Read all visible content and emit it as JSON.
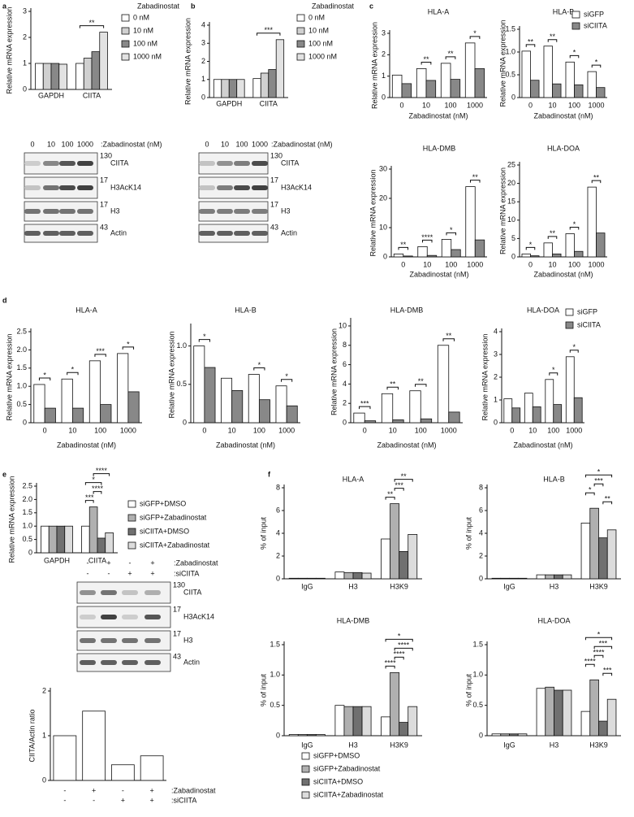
{
  "panel_labels": [
    "a",
    "b",
    "c",
    "d",
    "e",
    "f"
  ],
  "chart_data": [
    {
      "type": "bar",
      "ylabel": "Relative mRNA expression",
      "legend_title": "Zabadinostat",
      "legend": "right",
      "categories": [
        "GAPDH",
        "CIITA"
      ],
      "series": [
        {
          "name": "0 nM",
          "color": "#ffffff",
          "values": [
            1,
            1
          ]
        },
        {
          "name": "10 nM",
          "color": "#d0d0d0",
          "values": [
            1,
            1.2
          ]
        },
        {
          "name": "100 nM",
          "color": "#888888",
          "values": [
            1,
            1.45
          ]
        },
        {
          "name": "1000 nM",
          "color": "#e2e2e2",
          "values": [
            0.97,
            2.2
          ]
        }
      ],
      "ylim": [
        0,
        3
      ],
      "yticks": [
        0,
        1,
        2,
        3
      ],
      "brackets": [
        {
          "category": 1,
          "series": [
            0,
            3
          ],
          "text": "**"
        }
      ]
    },
    {
      "type": "bar",
      "ylabel": "Relative mRNA expression",
      "legend_title": "Zabadinostat",
      "legend": "right",
      "categories": [
        "GAPDH",
        "CIITA"
      ],
      "series": [
        {
          "name": "0 nM",
          "color": "#ffffff",
          "values": [
            1,
            1.05
          ]
        },
        {
          "name": "10 nM",
          "color": "#d0d0d0",
          "values": [
            1,
            1.35
          ]
        },
        {
          "name": "100 nM",
          "color": "#888888",
          "values": [
            1,
            1.55
          ]
        },
        {
          "name": "1000 nM",
          "color": "#e2e2e2",
          "values": [
            1,
            3.2
          ]
        }
      ],
      "ylim": [
        0,
        4
      ],
      "yticks": [
        0,
        1,
        2,
        3,
        4
      ],
      "brackets": [
        {
          "category": 1,
          "series": [
            0,
            3
          ],
          "text": "***"
        }
      ]
    },
    {
      "type": "bar",
      "title": "HLA-A",
      "ylabel": "Relative mRNA expression",
      "xlabel": "Zabadinostat (nM)",
      "categories": [
        "0",
        "10",
        "100",
        "1000"
      ],
      "series": [
        {
          "color": "#ffffff",
          "values": [
            1.05,
            1.35,
            1.6,
            2.55
          ]
        },
        {
          "color": "#888888",
          "values": [
            0.65,
            0.8,
            0.85,
            1.35
          ]
        }
      ],
      "ylim": [
        0,
        3
      ],
      "yticks": [
        0,
        1,
        2,
        3
      ],
      "significance": [
        null,
        "**",
        "**",
        "*"
      ]
    },
    {
      "type": "bar",
      "title": "HLA-B",
      "ylabel": "Relative mRNA expression",
      "xlabel": "Zabadinostat (nM)",
      "legend": "upper right",
      "categories": [
        "0",
        "10",
        "100",
        "1000"
      ],
      "series": [
        {
          "name": "siGFP",
          "color": "#ffffff",
          "values": [
            1.02,
            1.13,
            0.78,
            0.57
          ]
        },
        {
          "name": "siCIITA",
          "color": "#888888",
          "values": [
            0.38,
            0.3,
            0.28,
            0.22
          ]
        }
      ],
      "ylim": [
        0,
        1.5
      ],
      "yticks": [
        0,
        0.5,
        {
          "value": 1,
          "label": "1.0"
        },
        1.5
      ],
      "significance": [
        "**",
        "**",
        "*",
        "*"
      ]
    },
    {
      "type": "bar",
      "title": "HLA-DMB",
      "ylabel": "Relative mRNA expression",
      "xlabel": "Zabadinostat (nM)",
      "categories": [
        "0",
        "10",
        "100",
        "1000"
      ],
      "series": [
        {
          "color": "#ffffff",
          "values": [
            1,
            3.5,
            6,
            24
          ]
        },
        {
          "color": "#888888",
          "values": [
            0.3,
            0.5,
            2.5,
            5.8
          ]
        }
      ],
      "ylim": [
        0,
        30
      ],
      "yticks": [
        0,
        10,
        20,
        30
      ],
      "significance": [
        "**",
        "****",
        "*",
        "**"
      ]
    },
    {
      "type": "bar",
      "title": "HLA-DOA",
      "ylabel": "Relative mRNA expression",
      "xlabel": "Zabadinostat (nM)",
      "categories": [
        "0",
        "10",
        "100",
        "1000"
      ],
      "series": [
        {
          "color": "#ffffff",
          "values": [
            0.8,
            3.8,
            6.3,
            19
          ]
        },
        {
          "color": "#888888",
          "values": [
            0.3,
            0.8,
            1.5,
            6.5
          ]
        }
      ],
      "ylim": [
        0,
        25
      ],
      "yticks": [
        0,
        5,
        10,
        15,
        20,
        25
      ],
      "significance": [
        "*",
        "**",
        "*",
        "**"
      ]
    },
    {
      "type": "bar",
      "title": "HLA-A",
      "ylabel": "Relative mRNA expression",
      "xlabel": "Zabadinostat (nM)",
      "categories": [
        "0",
        "10",
        "100",
        "1000"
      ],
      "series": [
        {
          "color": "#ffffff",
          "values": [
            1.05,
            1.2,
            1.7,
            1.9
          ]
        },
        {
          "color": "#888888",
          "values": [
            0.4,
            0.4,
            0.5,
            0.85
          ]
        }
      ],
      "ylim": [
        0,
        2.5
      ],
      "yticks": [
        0,
        0.5,
        {
          "value": 1,
          "label": "1.0"
        },
        1.5,
        {
          "value": 2,
          "label": "2.0"
        },
        2.5
      ],
      "significance": [
        "*",
        "*",
        "***",
        "*"
      ]
    },
    {
      "type": "bar",
      "title": "HLA-B",
      "ylabel": "Relative mRNA expression",
      "xlabel": "Zabadinostat (nM)",
      "categories": [
        "0",
        "10",
        "100",
        "1000"
      ],
      "series": [
        {
          "color": "#ffffff",
          "values": [
            1,
            0.58,
            0.63,
            0.48
          ]
        },
        {
          "color": "#888888",
          "values": [
            0.72,
            0.42,
            0.3,
            0.22
          ]
        }
      ],
      "ylim": [
        0,
        1.25
      ],
      "yticks": [
        0,
        0.5,
        {
          "value": 1,
          "label": "1.0"
        }
      ],
      "significance": [
        "*",
        null,
        "*",
        "*"
      ]
    },
    {
      "type": "bar",
      "title": "HLA-DMB",
      "ylabel": "Relative mRNA expression",
      "xlabel": "Zabadinostat (nM)",
      "categories": [
        "0",
        "10",
        "100",
        "1000"
      ],
      "series": [
        {
          "color": "#ffffff",
          "values": [
            1,
            3,
            3.3,
            8
          ]
        },
        {
          "color": "#888888",
          "values": [
            0.2,
            0.3,
            0.4,
            1.1
          ]
        }
      ],
      "ylim": [
        0,
        10.5
      ],
      "yticks": [
        0,
        2,
        4,
        6,
        8,
        10
      ],
      "significance": [
        "***",
        "**",
        "**",
        "**"
      ]
    },
    {
      "type": "bar",
      "title": "HLA-DOA",
      "ylabel": "Relative mRNA expression",
      "xlabel": "Zabadinostat (nM)",
      "legend": "upper right",
      "categories": [
        "0",
        "10",
        "100",
        "1000"
      ],
      "series": [
        {
          "name": "siGFP",
          "color": "#ffffff",
          "values": [
            1.05,
            1.3,
            1.9,
            2.9
          ]
        },
        {
          "name": "siCIITA",
          "color": "#888888",
          "values": [
            0.65,
            0.7,
            0.8,
            1.1
          ]
        }
      ],
      "ylim": [
        0,
        4
      ],
      "yticks": [
        0,
        1,
        2,
        3,
        4
      ],
      "significance": [
        null,
        null,
        "*",
        "*"
      ]
    },
    {
      "type": "bar",
      "ylabel": "Relative mRNA expression",
      "legend": "right",
      "categories": [
        "GAPDH",
        "CIITA"
      ],
      "series": [
        {
          "name": "siGFP+DMSO",
          "color": "#ffffff",
          "values": [
            1,
            1
          ]
        },
        {
          "name": "siGFP+Zabadinostat",
          "color": "#b0b0b0",
          "values": [
            1,
            1.72
          ]
        },
        {
          "name": "siCIITA+DMSO",
          "color": "#707070",
          "values": [
            1,
            0.55
          ]
        },
        {
          "name": "siCIITA+Zabadinostat",
          "color": "#dcdcdc",
          "values": [
            1,
            0.75
          ]
        }
      ],
      "ylim": [
        0,
        2.5
      ],
      "yticks": [
        0,
        0.5,
        {
          "value": 1,
          "label": "1.0"
        },
        1.5,
        {
          "value": 2,
          "label": "2.0"
        },
        2.5
      ],
      "brackets": [
        {
          "category": 1,
          "series": [
            0,
            1
          ],
          "text": "***"
        },
        {
          "category": 1,
          "series": [
            1,
            2
          ],
          "text": "****"
        },
        {
          "category": 1,
          "series": [
            0,
            2
          ],
          "text": "*"
        },
        {
          "category": 1,
          "series": [
            1,
            3
          ],
          "text": "****"
        }
      ]
    },
    {
      "type": "bar",
      "ylabel": "CIITA/Actin ratio",
      "categories": [
        null,
        null,
        null,
        null
      ],
      "series": [
        {
          "color": "#ffffff",
          "values": [
            1,
            1.55,
            0.35,
            0.55
          ]
        }
      ],
      "ylim": [
        0,
        2
      ],
      "yticks": [
        0,
        1,
        2
      ],
      "x_rows": [
        {
          "label": ":Zabadinostat",
          "marks": [
            "-",
            "+",
            "-",
            "+"
          ]
        },
        {
          "label": ":siCIITA",
          "marks": [
            "-",
            "-",
            "+",
            "+"
          ]
        }
      ]
    },
    {
      "type": "bar",
      "title": "HLA-A",
      "ylabel": "% of input",
      "categories": [
        "IgG",
        "H3",
        "H3K9"
      ],
      "series": [
        {
          "color": "#ffffff",
          "values": [
            0.05,
            0.6,
            3.5
          ]
        },
        {
          "color": "#b0b0b0",
          "values": [
            0.05,
            0.55,
            6.6
          ]
        },
        {
          "color": "#707070",
          "values": [
            0.05,
            0.55,
            2.4
          ]
        },
        {
          "color": "#dcdcdc",
          "values": [
            0.05,
            0.5,
            3.9
          ]
        }
      ],
      "ylim": [
        0,
        8
      ],
      "yticks": [
        0,
        2,
        4,
        6,
        8
      ],
      "brackets": [
        {
          "category": 2,
          "series": [
            0,
            1
          ],
          "text": "**"
        },
        {
          "category": 2,
          "series": [
            1,
            2
          ],
          "text": "***"
        },
        {
          "category": 2,
          "series": [
            1,
            3
          ],
          "text": "**"
        }
      ]
    },
    {
      "type": "bar",
      "title": "HLA-B",
      "ylabel": "% of input",
      "categories": [
        "IgG",
        "H3",
        "H3K9"
      ],
      "series": [
        {
          "color": "#ffffff",
          "values": [
            0.05,
            0.35,
            4.9
          ]
        },
        {
          "color": "#b0b0b0",
          "values": [
            0.05,
            0.35,
            6.2
          ]
        },
        {
          "color": "#707070",
          "values": [
            0.05,
            0.35,
            3.6
          ]
        },
        {
          "color": "#dcdcdc",
          "values": [
            0.05,
            0.35,
            4.3
          ]
        }
      ],
      "ylim": [
        0,
        8
      ],
      "yticks": [
        0,
        2,
        4,
        6,
        8
      ],
      "brackets": [
        {
          "category": 2,
          "series": [
            2,
            3
          ],
          "text": "**"
        },
        {
          "category": 2,
          "series": [
            0,
            1
          ],
          "text": "*"
        },
        {
          "category": 2,
          "series": [
            1,
            2
          ],
          "text": "***"
        },
        {
          "category": 2,
          "series": [
            0,
            3
          ],
          "text": "*"
        }
      ]
    },
    {
      "type": "bar",
      "title": "HLA-DMB",
      "ylabel": "% of input",
      "legend": "bottom",
      "categories": [
        "IgG",
        "H3",
        "H3K9"
      ],
      "series": [
        {
          "name": "siGFP+DMSO",
          "color": "#ffffff",
          "values": [
            0.02,
            0.5,
            0.31
          ]
        },
        {
          "name": "siGFP+Zabadinostat",
          "color": "#b0b0b0",
          "values": [
            0.02,
            0.48,
            1.04
          ]
        },
        {
          "name": "siCIITA+DMSO",
          "color": "#707070",
          "values": [
            0.02,
            0.48,
            0.22
          ]
        },
        {
          "name": "siCIITA+Zabadinostat",
          "color": "#dcdcdc",
          "values": [
            0.02,
            0.48,
            0.48
          ]
        }
      ],
      "ylim": [
        0,
        1.5
      ],
      "yticks": [
        0,
        0.5,
        {
          "value": 1,
          "label": "1.0"
        },
        1.5
      ],
      "brackets": [
        {
          "category": 2,
          "series": [
            0,
            1
          ],
          "text": "****"
        },
        {
          "category": 2,
          "series": [
            1,
            2
          ],
          "text": "****"
        },
        {
          "category": 2,
          "series": [
            1,
            3
          ],
          "text": "****"
        },
        {
          "category": 2,
          "series": [
            0,
            3
          ],
          "text": "*"
        }
      ]
    },
    {
      "type": "bar",
      "title": "HLA-DOA",
      "ylabel": "% of input",
      "categories": [
        "IgG",
        "H3",
        "H3K9"
      ],
      "series": [
        {
          "color": "#ffffff",
          "values": [
            0.03,
            0.78,
            0.4
          ]
        },
        {
          "color": "#b0b0b0",
          "values": [
            0.03,
            0.8,
            0.92
          ]
        },
        {
          "color": "#707070",
          "values": [
            0.03,
            0.75,
            0.24
          ]
        },
        {
          "color": "#dcdcdc",
          "values": [
            0.03,
            0.75,
            0.6
          ]
        }
      ],
      "ylim": [
        0,
        1.5
      ],
      "yticks": [
        0,
        0.5,
        {
          "value": 1,
          "label": "1.0"
        },
        1.5
      ],
      "brackets": [
        {
          "category": 2,
          "series": [
            2,
            3
          ],
          "text": "***"
        },
        {
          "category": 2,
          "series": [
            0,
            1
          ],
          "text": "****"
        },
        {
          "category": 2,
          "series": [
            1,
            2
          ],
          "text": "****"
        },
        {
          "category": 2,
          "series": [
            1,
            3
          ],
          "text": "***"
        },
        {
          "category": 2,
          "series": [
            0,
            3
          ],
          "text": "*"
        }
      ]
    }
  ],
  "blots": [
    {
      "lanes": [
        "0",
        "10",
        "100",
        "1000"
      ],
      "treatment": ":Zabadinostat (nM)",
      "rows": [
        {
          "mw": "130",
          "name": "CIITA"
        },
        {
          "mw": "17",
          "name": "H3AcK14"
        },
        {
          "mw": "17",
          "name": "H3"
        },
        {
          "mw": "43",
          "name": "Actin"
        }
      ]
    },
    {
      "lanes": [
        "0",
        "10",
        "100",
        "1000"
      ],
      "treatment": ":Zabadinostat (nM)",
      "rows": [
        {
          "mw": "130",
          "name": "CIITA"
        },
        {
          "mw": "17",
          "name": "H3AcK14"
        },
        {
          "mw": "17",
          "name": "H3"
        },
        {
          "mw": "43",
          "name": "Actin"
        }
      ]
    },
    {
      "lane_rows": [
        {
          "label": ":Zabadinostat",
          "marks": [
            "-",
            "+",
            "-",
            "+"
          ]
        },
        {
          "label": ":siCIITA",
          "marks": [
            "-",
            "-",
            "+",
            "+"
          ]
        }
      ],
      "rows": [
        {
          "mw": "130",
          "name": "CIITA"
        },
        {
          "mw": "17",
          "name": "H3AcK14"
        },
        {
          "mw": "17",
          "name": "H3"
        },
        {
          "mw": "43",
          "name": "Actin"
        }
      ]
    }
  ]
}
